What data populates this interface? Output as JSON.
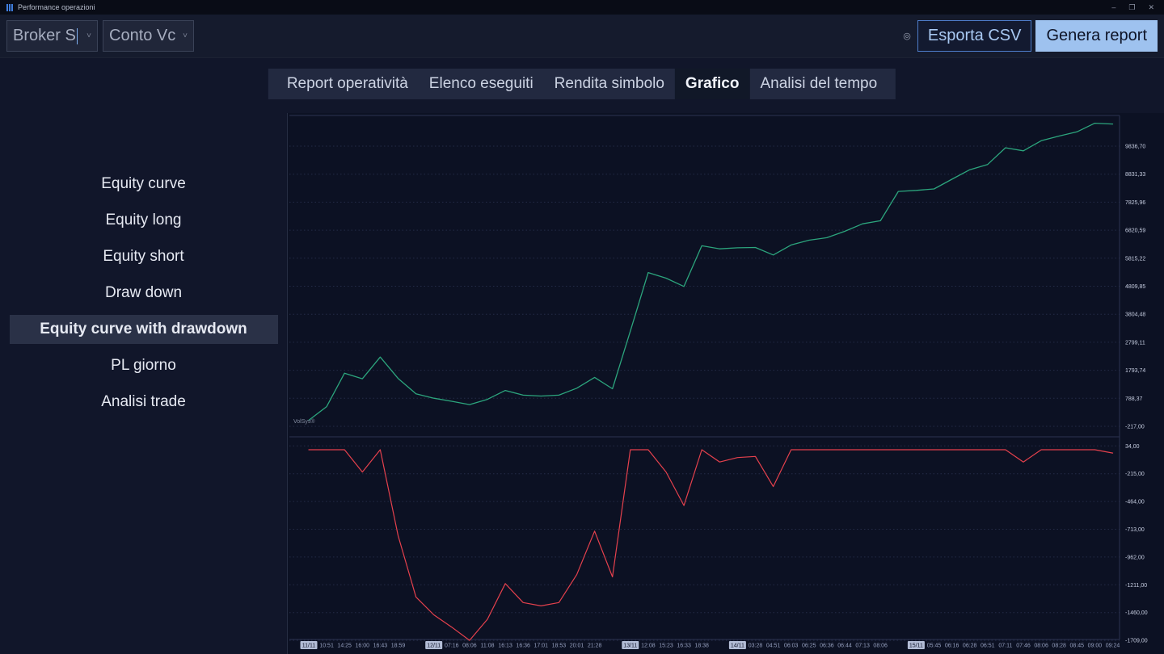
{
  "window": {
    "title": "Performance operazioni",
    "controls": {
      "minimize": "–",
      "restore": "❐",
      "close": "✕"
    }
  },
  "icons": {
    "target": "◎",
    "chevron_down": "˅"
  },
  "toolbar": {
    "broker_select": {
      "value": "Broker S"
    },
    "account_select": {
      "value": "Conto Vc"
    },
    "export_csv_label": "Esporta CSV",
    "generate_report_label": "Genera report"
  },
  "tabs": [
    {
      "label": "Report operatività",
      "active": false
    },
    {
      "label": "Elenco eseguiti",
      "active": false
    },
    {
      "label": "Rendita simbolo",
      "active": false
    },
    {
      "label": "Grafico",
      "active": true
    },
    {
      "label": "Analisi del tempo",
      "active": false
    }
  ],
  "sidebar": {
    "items": [
      {
        "label": "Equity curve",
        "active": false
      },
      {
        "label": "Equity long",
        "active": false
      },
      {
        "label": "Equity short",
        "active": false
      },
      {
        "label": "Draw down",
        "active": false
      },
      {
        "label": "Equity curve with drawdown",
        "active": true
      },
      {
        "label": "PL giorno",
        "active": false
      },
      {
        "label": "Analisi trade",
        "active": false
      }
    ]
  },
  "watermark": "VolSys®",
  "chart_data": [
    {
      "type": "line",
      "name": "Equity curve",
      "color": "#2ca57d",
      "x_labels": [
        "11/11",
        "10:51",
        "14:25",
        "16:00",
        "16:43",
        "18:59",
        "",
        "12/11",
        "07:16",
        "08:06",
        "11:08",
        "16:13",
        "16:36",
        "17:01",
        "18:53",
        "20:01",
        "21:28",
        "",
        "13/11",
        "12:08",
        "15:23",
        "16:33",
        "18:38",
        "",
        "14/11",
        "03:28",
        "04:51",
        "06:03",
        "06:25",
        "06:36",
        "06:44",
        "07:13",
        "08:06",
        "",
        "15/11",
        "05:45",
        "06:16",
        "06:28",
        "06:51",
        "07:11",
        "07:46",
        "08:06",
        "08:28",
        "08:45",
        "09:00",
        "09:24"
      ],
      "date_label_indices": [
        0,
        7,
        18,
        24,
        34
      ],
      "values": [
        0,
        490,
        1690,
        1490,
        2270,
        1500,
        950,
        790,
        680,
        561,
        750,
        1070,
        900,
        870,
        900,
        1150,
        1540,
        1130,
        3200,
        5300,
        5100,
        4800,
        6260,
        6150,
        6190,
        6200,
        5930,
        6290,
        6460,
        6550,
        6780,
        7050,
        7160,
        8210,
        8250,
        8300,
        8650,
        8990,
        9180,
        9780,
        9670,
        10030,
        10200,
        10350,
        10660,
        10630
      ],
      "y_tick_labels": [
        "9836,70",
        "8831,33",
        "7825,96",
        "6820,59",
        "5815,22",
        "4809,85",
        "3804,48",
        "2799,11",
        "1793,74",
        "788,37",
        "-217,00"
      ],
      "y_tick_values": [
        9836.7,
        8831.33,
        7825.96,
        6820.59,
        5815.22,
        4809.85,
        3804.48,
        2799.11,
        1793.74,
        788.37,
        -217.0
      ],
      "ylim": [
        -217.0,
        9836.7
      ],
      "xlabel": "",
      "ylabel": "",
      "legend": "none",
      "grid": "horizontal-dashed"
    },
    {
      "type": "line",
      "name": "Drawdown",
      "color": "#e5414d",
      "values": [
        0,
        0,
        0,
        -200,
        0,
        -770,
        -1320,
        -1480,
        -1590,
        -1709,
        -1520,
        -1200,
        -1370,
        -1400,
        -1370,
        -1120,
        -730,
        -1140,
        0,
        0,
        -200,
        -500,
        0,
        -110,
        -70,
        -60,
        -330,
        0,
        0,
        0,
        0,
        0,
        0,
        0,
        0,
        0,
        0,
        0,
        0,
        0,
        -110,
        0,
        0,
        0,
        0,
        -30
      ],
      "y_tick_labels": [
        "34,00",
        "-215,00",
        "-464,00",
        "-713,00",
        "-962,00",
        "-1211,00",
        "-1460,00",
        "-1709,00"
      ],
      "y_tick_values": [
        34.0,
        -215.0,
        -464.0,
        -713.0,
        -962.0,
        -1211.0,
        -1460.0,
        -1709.0
      ],
      "ylim": [
        -1709.0,
        34.0
      ],
      "xlabel": "",
      "ylabel": "",
      "legend": "none",
      "grid": "horizontal-dashed"
    }
  ]
}
